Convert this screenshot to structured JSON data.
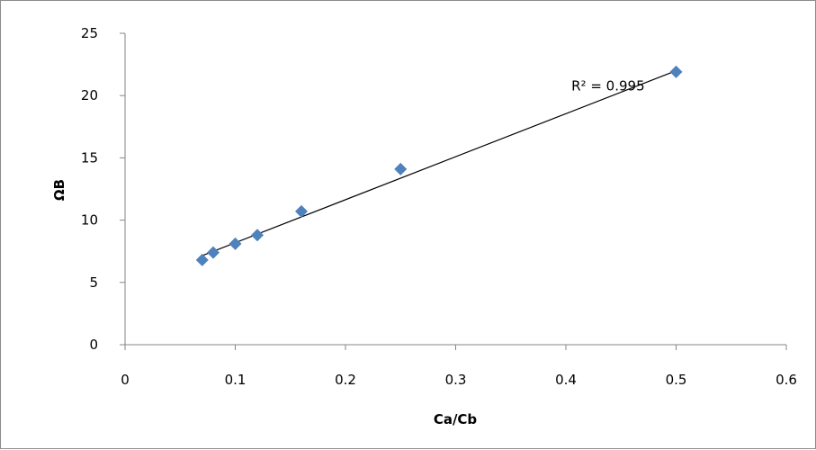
{
  "chart_data": {
    "type": "scatter",
    "xlabel": "Ca/Cb",
    "ylabel": "ΩB",
    "xlim": [
      0,
      0.6
    ],
    "ylim": [
      0,
      25
    ],
    "x_ticks": [
      0,
      0.1,
      0.2,
      0.3,
      0.4,
      0.5,
      0.6
    ],
    "y_ticks": [
      0,
      5,
      10,
      15,
      20,
      25
    ],
    "x_tick_labels": [
      "0",
      "0.1",
      "0.2",
      "0.3",
      "0.4",
      "0.5",
      "0.6"
    ],
    "y_tick_labels": [
      "0",
      "5",
      "10",
      "15",
      "20",
      "25"
    ],
    "grid": false,
    "legend": "none",
    "marker": "diamond",
    "marker_color": "#4f81bd",
    "series": [
      {
        "x": [
          0.07,
          0.08,
          0.1,
          0.12,
          0.16,
          0.25,
          0.5
        ],
        "y": [
          6.8,
          7.4,
          8.1,
          8.8,
          10.7,
          14.1,
          21.9
        ]
      }
    ],
    "trendline": {
      "type": "linear",
      "x_range": [
        0.07,
        0.5
      ],
      "y_range": [
        7.15,
        22.0
      ],
      "color": "#000000"
    },
    "annotations": [
      {
        "text": "R² = 0.995",
        "x": 0.405,
        "y": 20.4
      }
    ]
  }
}
